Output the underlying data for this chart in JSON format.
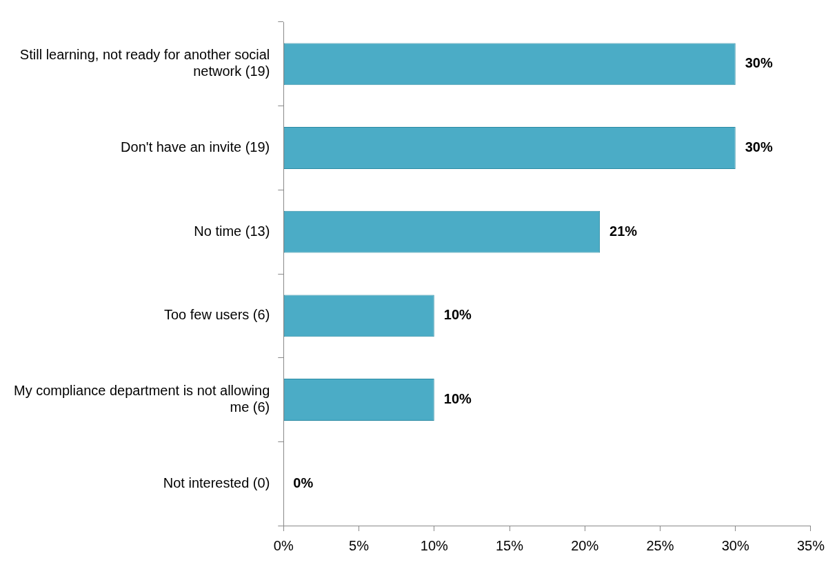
{
  "chart_data": {
    "type": "bar",
    "orientation": "horizontal",
    "categories": [
      "Still learning, not ready for another social network (19)",
      "Don't have an invite (19)",
      "No time (13)",
      "Too few users (6)",
      "My compliance department is not allowing me (6)",
      "Not interested (0)"
    ],
    "values": [
      30,
      30,
      21,
      10,
      10,
      0
    ],
    "value_labels": [
      "30%",
      "30%",
      "21%",
      "10%",
      "10%",
      "0%"
    ],
    "color": "#4bacc6",
    "xlim": [
      0,
      35
    ],
    "xticks": [
      {
        "value": 0,
        "label": "0%"
      },
      {
        "value": 5,
        "label": "5%"
      },
      {
        "value": 10,
        "label": "10%"
      },
      {
        "value": 15,
        "label": "15%"
      },
      {
        "value": 20,
        "label": "20%"
      },
      {
        "value": 25,
        "label": "25%"
      },
      {
        "value": 30,
        "label": "30%"
      },
      {
        "value": 35,
        "label": "35%"
      }
    ],
    "grid": false,
    "legend": false
  }
}
